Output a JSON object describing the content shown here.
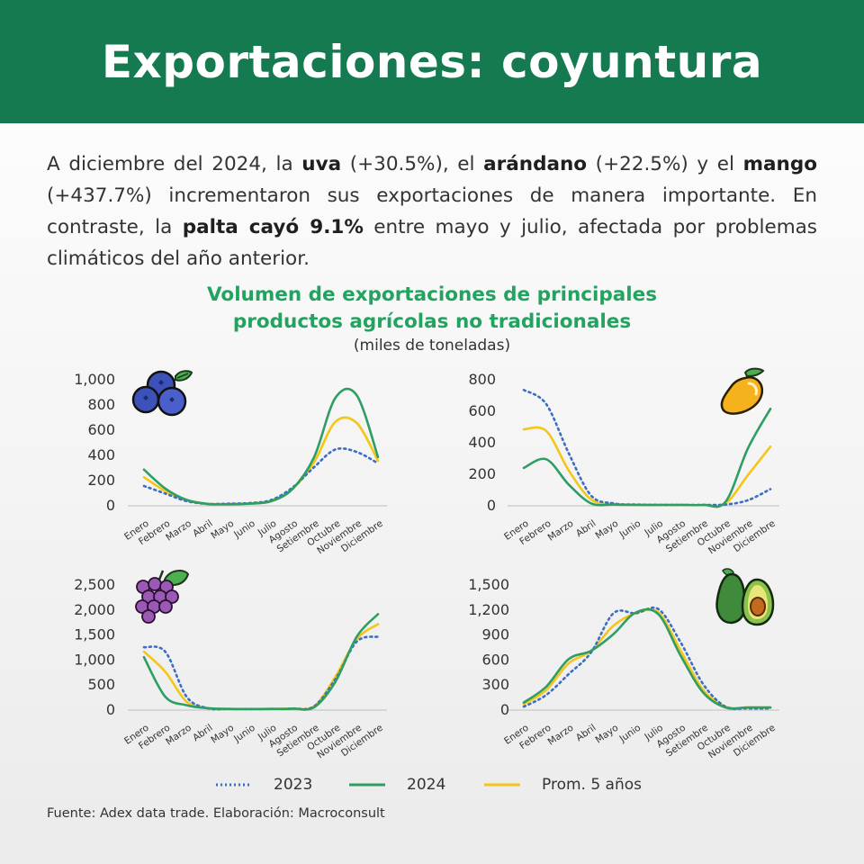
{
  "header": {
    "title": "Exportaciones: coyuntura"
  },
  "intro": {
    "t1": "A diciembre del 2024, la ",
    "b1": "uva",
    "t2": " (+30.5%), el ",
    "b2": "arándano",
    "t3": " (+22.5%) y el ",
    "b3": "mango",
    "t4": " (+437.7%) incrementaron sus exportaciones de manera importante. En contraste, la ",
    "b4": "palta cayó 9.1%",
    "t5": " entre mayo y julio, afectada por problemas climáticos del año anterior."
  },
  "chart_title": {
    "line1": "Volumen de exportaciones de principales",
    "line2": "productos agrícolas no tradicionales",
    "unit": "(miles de toneladas)"
  },
  "legend": {
    "s2023": "2023",
    "s2024": "2024",
    "sprom": "Prom. 5 años"
  },
  "colors": {
    "header": "#157a50",
    "title": "#22a35f",
    "s2023": "#3b6fc4",
    "s2024": "#2e9e63",
    "sprom": "#f5c518"
  },
  "source": "Fuente: Adex data trade. Elaboración: Macroconsult",
  "icons": [
    "blueberry-icon",
    "mango-icon",
    "grapes-icon",
    "avocado-icon"
  ],
  "chart_data": [
    {
      "type": "line",
      "product": "arándano",
      "categories": [
        "Enero",
        "Febrero",
        "Marzo",
        "Abril",
        "Mayo",
        "Junio",
        "Julio",
        "Agosto",
        "Setiembre",
        "Octubre",
        "Noviembre",
        "Diciembre"
      ],
      "ylim": [
        0,
        1000
      ],
      "yticks": [
        "0",
        "200",
        "400",
        "600",
        "800",
        "1,000"
      ],
      "grid": false,
      "series": [
        {
          "name": "2023",
          "values": [
            150,
            90,
            30,
            8,
            10,
            15,
            40,
            140,
            300,
            440,
            420,
            330
          ]
        },
        {
          "name": "2024",
          "values": [
            280,
            130,
            40,
            8,
            5,
            10,
            30,
            130,
            380,
            850,
            870,
            380
          ]
        },
        {
          "name": "Prom. 5 años",
          "values": [
            220,
            110,
            35,
            8,
            8,
            12,
            35,
            130,
            340,
            660,
            650,
            350
          ]
        }
      ]
    },
    {
      "type": "line",
      "product": "mango",
      "categories": [
        "Enero",
        "Febrero",
        "Marzo",
        "Abril",
        "Mayo",
        "Junio",
        "Julio",
        "Agosto",
        "Setiembre",
        "Octubre",
        "Noviembre",
        "Diciembre"
      ],
      "ylim": [
        0,
        800
      ],
      "yticks": [
        "0",
        "200",
        "400",
        "600",
        "800"
      ],
      "grid": false,
      "series": [
        {
          "name": "2023",
          "values": [
            730,
            640,
            330,
            60,
            10,
            2,
            0,
            0,
            0,
            2,
            30,
            100
          ]
        },
        {
          "name": "2024",
          "values": [
            235,
            290,
            130,
            10,
            2,
            0,
            0,
            0,
            0,
            20,
            360,
            610
          ]
        },
        {
          "name": "Prom. 5 años",
          "values": [
            480,
            470,
            220,
            35,
            5,
            1,
            0,
            0,
            0,
            10,
            190,
            370
          ]
        }
      ]
    },
    {
      "type": "line",
      "product": "uva",
      "categories": [
        "Enero",
        "Febrero",
        "Marzo",
        "Abril",
        "Mayo",
        "Junio",
        "Julio",
        "Agosto",
        "Setiembre",
        "Octubre",
        "Noviembre",
        "Diciembre"
      ],
      "ylim": [
        0,
        2500
      ],
      "yticks": [
        "0",
        "500",
        "1,000",
        "1,500",
        "2,000",
        "2,500"
      ],
      "grid": false,
      "series": [
        {
          "name": "2023",
          "values": [
            1240,
            1150,
            250,
            20,
            5,
            3,
            5,
            10,
            60,
            600,
            1350,
            1450
          ]
        },
        {
          "name": "2024",
          "values": [
            1040,
            250,
            80,
            20,
            5,
            3,
            5,
            10,
            40,
            550,
            1450,
            1900
          ]
        },
        {
          "name": "Prom. 5 años",
          "values": [
            1150,
            750,
            150,
            25,
            5,
            3,
            5,
            15,
            60,
            650,
            1400,
            1700
          ]
        }
      ]
    },
    {
      "type": "line",
      "product": "palta",
      "categories": [
        "Enero",
        "Febrero",
        "Marzo",
        "Abril",
        "Mayo",
        "Junio",
        "Julio",
        "Agosto",
        "Setiembre",
        "Octubre",
        "Noviembre",
        "Diciembre"
      ],
      "ylim": [
        0,
        1500
      ],
      "yticks": [
        "0",
        "300",
        "600",
        "900",
        "1,200",
        "1,500"
      ],
      "grid": false,
      "series": [
        {
          "name": "2023",
          "values": [
            30,
            170,
            420,
            680,
            1150,
            1150,
            1200,
            800,
            300,
            30,
            10,
            10
          ]
        },
        {
          "name": "2024",
          "values": [
            80,
            270,
            600,
            700,
            900,
            1160,
            1140,
            640,
            200,
            20,
            20,
            20
          ]
        },
        {
          "name": "Prom. 5 años",
          "values": [
            60,
            230,
            550,
            700,
            1000,
            1150,
            1160,
            700,
            230,
            30,
            20,
            20
          ]
        }
      ]
    }
  ]
}
